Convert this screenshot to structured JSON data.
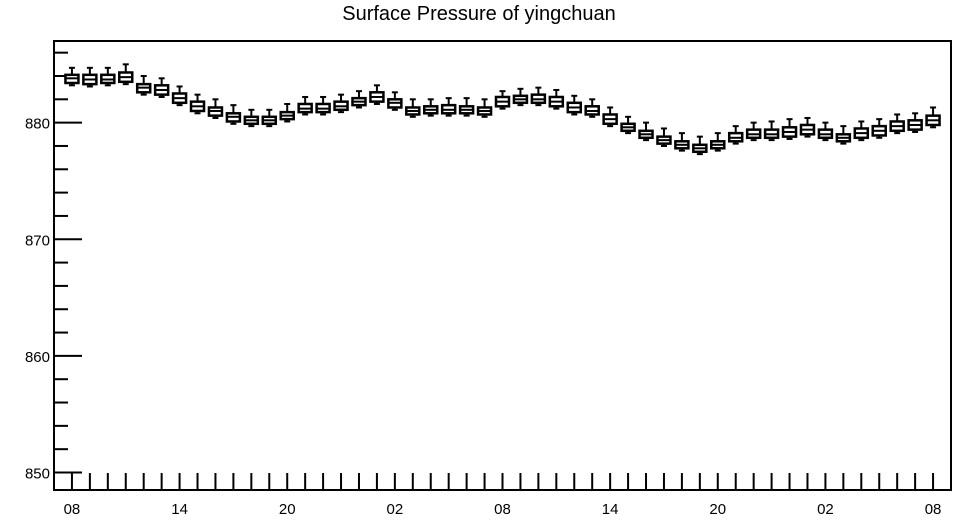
{
  "chart_data": {
    "type": "box",
    "title": "Surface Pressure of yingchuan",
    "xlabel": "",
    "ylabel": "",
    "ylim": [
      848.5,
      887
    ],
    "y_ticks": [
      850,
      860,
      870,
      880
    ],
    "y_tick_labels": [
      "850",
      "860",
      "870",
      "880"
    ],
    "x_tick_labels": [
      "08",
      "14",
      "20",
      "02",
      "08",
      "14",
      "20",
      "02",
      "08"
    ],
    "x_tick_positions": [
      0,
      6,
      12,
      18,
      24,
      30,
      36,
      42,
      48
    ],
    "x_range": [
      -1,
      49
    ],
    "grid": false,
    "series": [
      {
        "x": [
          0,
          1,
          2,
          3,
          4,
          5,
          6,
          7,
          8,
          9,
          10,
          11,
          12,
          13,
          14,
          15,
          16,
          17,
          18,
          19,
          20,
          21,
          22,
          23,
          24,
          25,
          26,
          27,
          28,
          29,
          30,
          31,
          32,
          33,
          34,
          35,
          36,
          37,
          38,
          39,
          40,
          41,
          42,
          43,
          44,
          45,
          46,
          47,
          48
        ],
        "median": [
          883.8,
          883.7,
          883.7,
          883.9,
          883.0,
          882.8,
          882.1,
          881.4,
          881.0,
          880.5,
          880.2,
          880.2,
          880.6,
          881.2,
          881.2,
          881.4,
          881.8,
          882.2,
          881.7,
          881.0,
          881.1,
          881.1,
          881.1,
          881.0,
          881.8,
          882.0,
          882.0,
          881.8,
          881.3,
          881.0,
          880.3,
          879.6,
          879.0,
          878.5,
          878.1,
          877.8,
          878.1,
          878.7,
          879.0,
          879.0,
          879.2,
          879.4,
          879.0,
          878.7,
          879.1,
          879.3,
          879.7,
          879.8,
          880.2
        ],
        "q1": [
          883.4,
          883.3,
          883.4,
          883.5,
          882.6,
          882.4,
          881.7,
          881.0,
          880.6,
          880.1,
          879.9,
          879.9,
          880.3,
          880.9,
          880.9,
          881.1,
          881.5,
          881.8,
          881.3,
          880.7,
          880.8,
          880.8,
          880.8,
          880.7,
          881.4,
          881.7,
          881.7,
          881.4,
          880.9,
          880.7,
          879.9,
          879.3,
          878.7,
          878.2,
          877.8,
          877.5,
          877.8,
          878.4,
          878.7,
          878.7,
          878.8,
          879.0,
          878.7,
          878.4,
          878.7,
          878.9,
          879.3,
          879.4,
          879.8
        ],
        "q3": [
          884.1,
          884.1,
          884.1,
          884.3,
          883.3,
          883.2,
          882.5,
          881.8,
          881.3,
          880.8,
          880.5,
          880.5,
          880.9,
          881.6,
          881.6,
          881.8,
          882.1,
          882.6,
          882.0,
          881.3,
          881.4,
          881.5,
          881.4,
          881.3,
          882.2,
          882.3,
          882.4,
          882.2,
          881.7,
          881.4,
          880.7,
          879.9,
          879.3,
          878.8,
          878.4,
          878.1,
          878.4,
          879.1,
          879.4,
          879.4,
          879.6,
          879.8,
          879.4,
          879.0,
          879.5,
          879.7,
          880.1,
          880.2,
          880.6
        ],
        "whisker_low": [
          883.2,
          883.1,
          883.2,
          883.3,
          882.4,
          882.2,
          881.5,
          880.8,
          880.4,
          879.9,
          879.7,
          879.7,
          880.1,
          880.7,
          880.7,
          880.9,
          881.3,
          881.6,
          881.1,
          880.5,
          880.6,
          880.6,
          880.6,
          880.5,
          881.2,
          881.5,
          881.5,
          881.2,
          880.7,
          880.5,
          879.7,
          879.1,
          878.5,
          878.0,
          877.6,
          877.3,
          877.6,
          878.2,
          878.5,
          878.5,
          878.6,
          878.8,
          878.5,
          878.2,
          878.5,
          878.7,
          879.1,
          879.2,
          879.6
        ],
        "whisker_high": [
          884.7,
          884.7,
          884.7,
          885.0,
          884.0,
          883.8,
          883.1,
          882.4,
          882.0,
          881.5,
          881.1,
          881.1,
          881.6,
          882.2,
          882.2,
          882.4,
          882.7,
          883.2,
          882.6,
          882.0,
          882.0,
          882.1,
          882.1,
          882.0,
          882.7,
          882.9,
          883.0,
          882.8,
          882.3,
          882.0,
          881.3,
          880.5,
          880.0,
          879.5,
          879.1,
          878.8,
          879.1,
          879.7,
          880.0,
          880.1,
          880.3,
          880.4,
          880.0,
          879.7,
          880.1,
          880.3,
          880.7,
          880.8,
          881.3
        ]
      }
    ]
  }
}
